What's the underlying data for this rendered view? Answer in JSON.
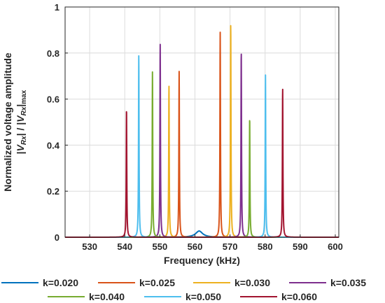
{
  "chart_data": {
    "type": "line",
    "xlabel": "Frequency (kHz)",
    "ylabel_line1": "Normalized voltage amplitude",
    "ylabel_line2_parts": [
      "|",
      "V",
      "Rx",
      "| / |",
      "V",
      "Rx",
      "|",
      "max"
    ],
    "xlim": [
      523,
      601
    ],
    "ylim": [
      0,
      1
    ],
    "x_ticks": [
      530,
      540,
      550,
      560,
      570,
      580,
      590,
      600
    ],
    "x_tick_labels": [
      "530",
      "540",
      "550",
      "560",
      "570",
      "580",
      "590",
      "600"
    ],
    "y_ticks": [
      0,
      0.2,
      0.4,
      0.6,
      0.8,
      1
    ],
    "y_tick_labels": [
      "0",
      "0.2",
      "0.4",
      "0.6",
      "0.8",
      "1"
    ],
    "grid": true,
    "legend_position": "bottom",
    "series": [
      {
        "name": "k=0.020",
        "color": "#0072BD",
        "peaks": [
          [
            561.2,
            0.027
          ]
        ]
      },
      {
        "name": "k=0.025",
        "color": "#D95319",
        "peaks": [
          [
            555.5,
            0.72
          ],
          [
            567.2,
            0.89
          ]
        ]
      },
      {
        "name": "k=0.030",
        "color": "#EDB120",
        "peaks": [
          [
            552.6,
            0.66
          ],
          [
            570.2,
            0.93
          ]
        ]
      },
      {
        "name": "k=0.035",
        "color": "#7E2F8E",
        "peaks": [
          [
            550.1,
            0.84
          ],
          [
            573.2,
            0.81
          ]
        ]
      },
      {
        "name": "k=0.040",
        "color": "#77AC30",
        "peaks": [
          [
            547.9,
            0.72
          ],
          [
            575.6,
            0.52
          ]
        ]
      },
      {
        "name": "k=0.050",
        "color": "#4DBEEE",
        "peaks": [
          [
            544.0,
            0.79
          ],
          [
            580.1,
            0.705
          ]
        ]
      },
      {
        "name": "k=0.060",
        "color": "#A2142F",
        "peaks": [
          [
            540.5,
            0.56
          ],
          [
            585.0,
            0.65
          ]
        ]
      }
    ]
  }
}
